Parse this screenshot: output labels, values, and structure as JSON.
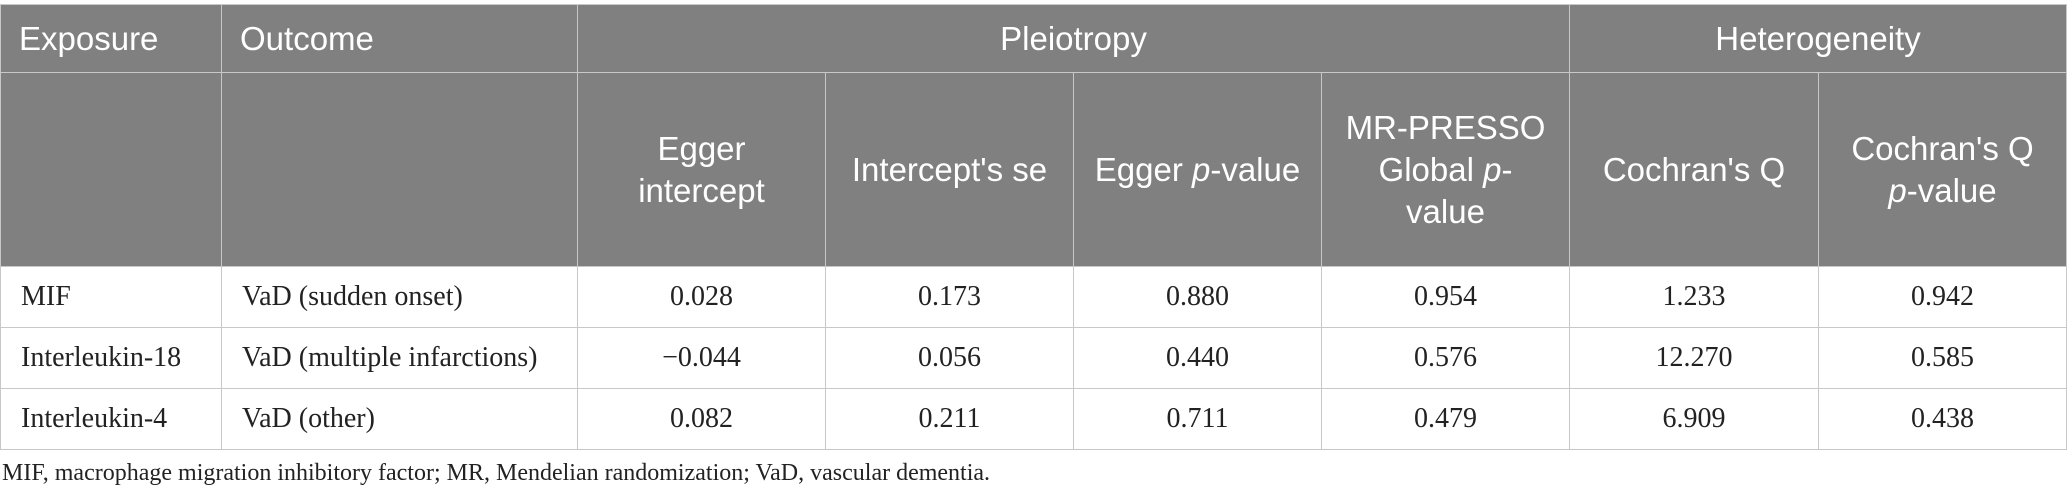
{
  "header": {
    "exposure": "Exposure",
    "outcome": "Outcome",
    "pleiotropy": "Pleiotropy",
    "heterogeneity": "Heterogeneity",
    "egger_intercept": "Egger intercept",
    "intercept_se": "Intercept's se",
    "egger_p_prefix": "Egger ",
    "p_italic": "p",
    "egger_p_suffix": "-value",
    "mrpresso_prefix": "MR-PRESSO Global ",
    "mrpresso_suffix": "-value",
    "cochrans_q": "Cochran's Q",
    "cochrans_q_p_prefix": "Cochran's Q ",
    "cochrans_q_p_suffix": "-value"
  },
  "rows": [
    {
      "exposure": "MIF",
      "outcome": "VaD (sudden onset)",
      "egger_intercept": "0.028",
      "intercept_se": "0.173",
      "egger_p": "0.880",
      "mrpresso_p": "0.954",
      "cochrans_q": "1.233",
      "cochrans_q_p": "0.942"
    },
    {
      "exposure": "Interleukin-18",
      "outcome": "VaD (multiple infarctions)",
      "egger_intercept": "−0.044",
      "intercept_se": "0.056",
      "egger_p": "0.440",
      "mrpresso_p": "0.576",
      "cochrans_q": "12.270",
      "cochrans_q_p": "0.585"
    },
    {
      "exposure": "Interleukin-4",
      "outcome": "VaD (other)",
      "egger_intercept": "0.082",
      "intercept_se": "0.211",
      "egger_p": "0.711",
      "mrpresso_p": "0.479",
      "cochrans_q": "6.909",
      "cochrans_q_p": "0.438"
    }
  ],
  "footnote": "MIF, macrophage migration inhibitory factor; MR, Mendelian randomization; VaD, vascular dementia."
}
